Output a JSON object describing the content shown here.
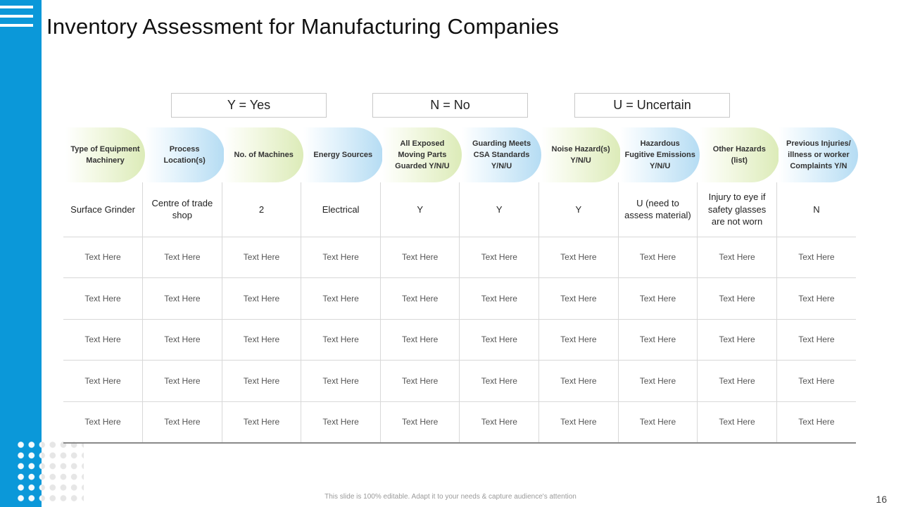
{
  "slide": {
    "title": "Inventory Assessment for Manufacturing Companies",
    "footer_note": "This slide is 100% editable. Adapt it to your needs & capture audience's attention",
    "page_number": "16"
  },
  "legend": [
    {
      "label": "Y = Yes"
    },
    {
      "label": "N = No"
    },
    {
      "label": "U = Uncertain"
    }
  ],
  "table": {
    "headers": [
      "Type of Equipment Machinery",
      "Process Location(s)",
      "No. of Machines",
      "Energy Sources",
      "All Exposed Moving Parts Guarded Y/N/U",
      "Guarding Meets CSA Standards Y/N/U",
      "Noise Hazard(s) Y/N/U",
      "Hazardous Fugitive Emissions Y/N/U",
      "Other Hazards (list)",
      "Previous Injuries/ illness or worker Complaints Y/N"
    ],
    "rows": [
      [
        "Surface Grinder",
        "Centre of trade shop",
        "2",
        "Electrical",
        "Y",
        "Y",
        "Y",
        "U (need to assess material)",
        "Injury to eye if safety glasses are not worn",
        "N"
      ],
      [
        "Text Here",
        "Text Here",
        "Text Here",
        "Text Here",
        "Text Here",
        "Text Here",
        "Text Here",
        "Text Here",
        "Text Here",
        "Text Here"
      ],
      [
        "Text Here",
        "Text Here",
        "Text Here",
        "Text Here",
        "Text Here",
        "Text Here",
        "Text Here",
        "Text Here",
        "Text Here",
        "Text Here"
      ],
      [
        "Text Here",
        "Text Here",
        "Text Here",
        "Text Here",
        "Text Here",
        "Text Here",
        "Text Here",
        "Text Here",
        "Text Here",
        "Text Here"
      ],
      [
        "Text Here",
        "Text Here",
        "Text Here",
        "Text Here",
        "Text Here",
        "Text Here",
        "Text Here",
        "Text Here",
        "Text Here",
        "Text Here"
      ],
      [
        "Text Here",
        "Text Here",
        "Text Here",
        "Text Here",
        "Text Here",
        "Text Here",
        "Text Here",
        "Text Here",
        "Text Here",
        "Text Here"
      ]
    ]
  },
  "icons": {
    "menu": "hamburger-menu-icon",
    "decor": "dot-grid-decoration"
  },
  "colors": {
    "accent": "#0b98d9",
    "pill_green": "#dcebb8",
    "pill_blue": "#b5dcf3"
  }
}
